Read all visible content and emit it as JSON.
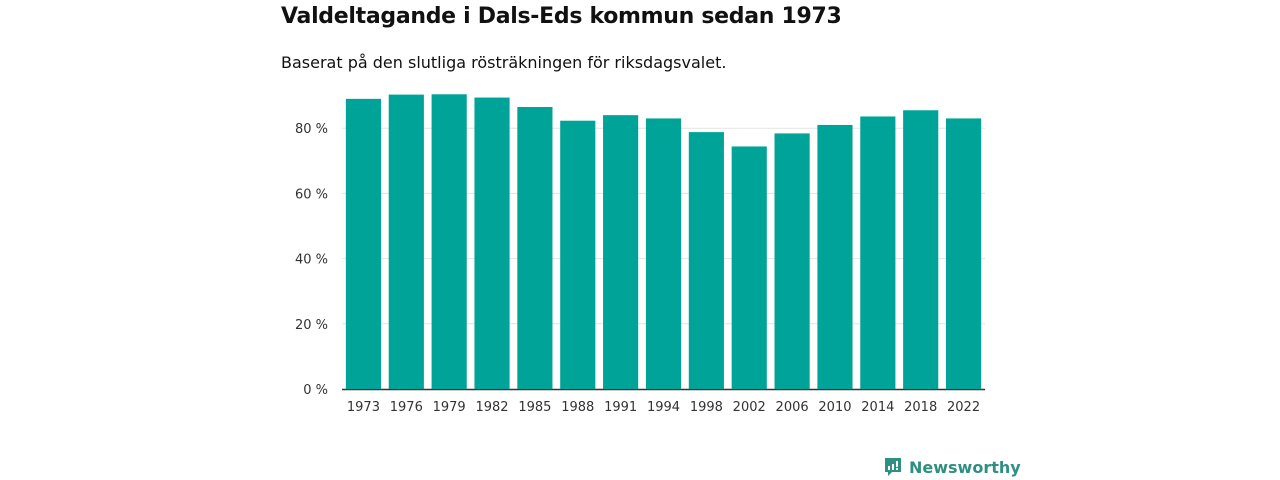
{
  "chart_data": {
    "type": "bar",
    "title": "Valdeltagande i Dals-Eds kommun sedan 1973",
    "subtitle": "Baserat på den slutliga rösträkningen för riksdagsvalet.",
    "xlabel": "",
    "ylabel": "",
    "categories": [
      "1973",
      "1976",
      "1979",
      "1982",
      "1985",
      "1988",
      "1991",
      "1994",
      "1998",
      "2002",
      "2006",
      "2010",
      "2014",
      "2018",
      "2022"
    ],
    "values": [
      89.0,
      90.3,
      90.4,
      89.4,
      86.5,
      82.3,
      84.0,
      83.0,
      78.8,
      74.4,
      78.4,
      81.0,
      83.6,
      85.5,
      83.0
    ],
    "ylim": [
      0,
      92
    ],
    "yticks": [
      0,
      20,
      40,
      60,
      80
    ],
    "ytick_labels": [
      "0 %",
      "20 %",
      "40 %",
      "60 %",
      "80 %"
    ],
    "grid": true,
    "bar_color": "#00a398"
  },
  "brand": {
    "name": "Newsworthy",
    "color": "#2f8f82"
  }
}
